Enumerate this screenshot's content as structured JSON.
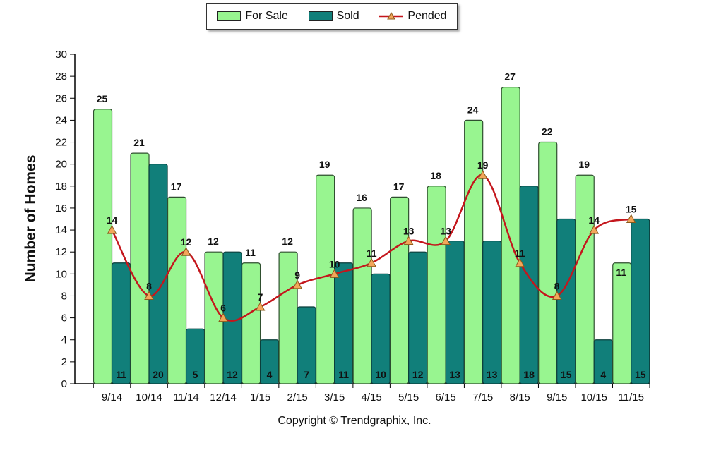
{
  "legend": {
    "items": [
      {
        "label": "For Sale",
        "color": "#98f590"
      },
      {
        "label": "Sold",
        "color": "#117f7a"
      },
      {
        "label": "Pended",
        "color": "#c4161c"
      }
    ]
  },
  "copyright": "Copyright © Trendgraphix, Inc.",
  "chart_data": {
    "type": "bar",
    "ylabel": "Number of Homes",
    "xlabel": "",
    "ylim": [
      0,
      30
    ],
    "yticks": [
      0,
      2,
      4,
      6,
      8,
      10,
      12,
      14,
      16,
      18,
      20,
      22,
      24,
      26,
      28,
      30
    ],
    "categories": [
      "9/14",
      "10/14",
      "11/14",
      "12/14",
      "1/15",
      "2/15",
      "3/15",
      "4/15",
      "5/15",
      "6/15",
      "7/15",
      "8/15",
      "9/15",
      "10/15",
      "11/15"
    ],
    "series": [
      {
        "name": "For Sale",
        "type": "bar",
        "color": "#98f590",
        "values": [
          25,
          21,
          17,
          12,
          11,
          12,
          19,
          16,
          17,
          18,
          24,
          27,
          22,
          19,
          11
        ]
      },
      {
        "name": "Sold",
        "type": "bar",
        "color": "#117f7a",
        "values": [
          11,
          20,
          5,
          12,
          4,
          7,
          11,
          10,
          12,
          13,
          13,
          18,
          15,
          4,
          15
        ]
      },
      {
        "name": "Pended",
        "type": "line",
        "color": "#c4161c",
        "marker_color": "#f2a65a",
        "values": [
          14,
          8,
          12,
          6,
          7,
          9,
          10,
          11,
          13,
          13,
          19,
          11,
          8,
          14,
          15
        ]
      }
    ],
    "grid": false,
    "legend_position": "top-center"
  }
}
